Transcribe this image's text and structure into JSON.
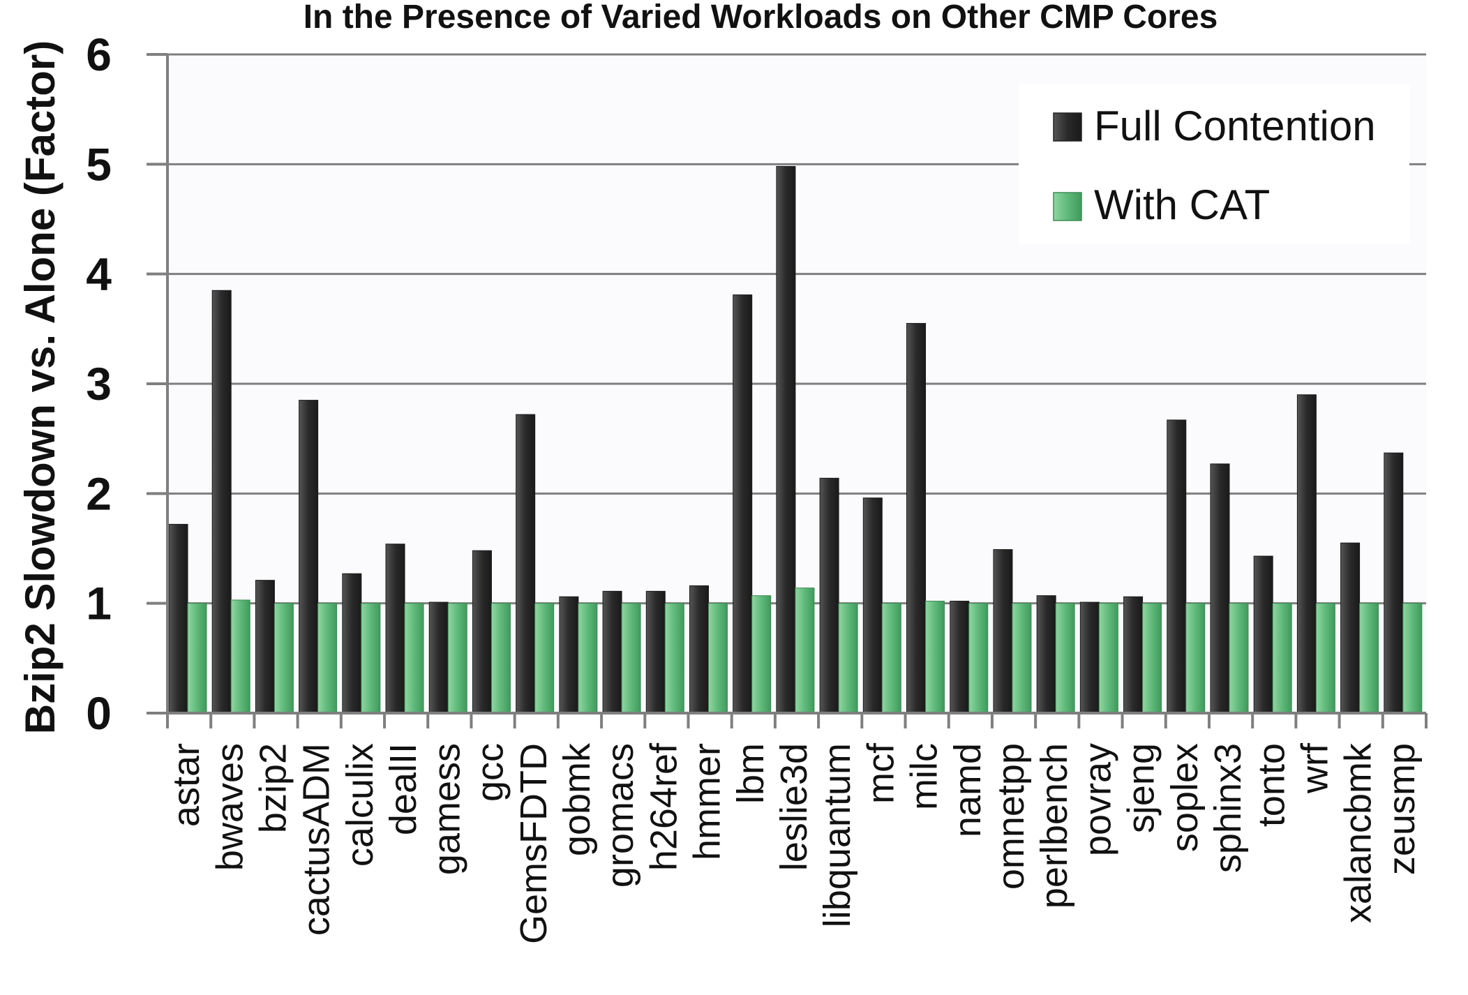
{
  "chart_data": {
    "type": "bar",
    "title": "In the Presence of Varied Workloads on Other CMP Cores",
    "ylabel": "Bzip2 Slowdown vs. Alone (Factor)",
    "xlabel": "",
    "ylim": [
      0,
      6
    ],
    "yticks": [
      "0",
      "1",
      "2",
      "3",
      "4",
      "5",
      "6"
    ],
    "grid": true,
    "legend_position": "top-right",
    "categories": [
      "astar",
      "bwaves",
      "bzip2",
      "cactusADM",
      "calculix",
      "dealII",
      "gamess",
      "gcc",
      "GemsFDTD",
      "gobmk",
      "gromacs",
      "h264ref",
      "hmmer",
      "lbm",
      "leslie3d",
      "libquantum",
      "mcf",
      "milc",
      "namd",
      "omnetpp",
      "perlbench",
      "povray",
      "sjeng",
      "soplex",
      "sphinx3",
      "tonto",
      "wrf",
      "xalancbmk",
      "zeusmp"
    ],
    "series": [
      {
        "name": "Full Contention",
        "color": "#3a3a3a",
        "values": [
          1.72,
          3.85,
          1.21,
          2.85,
          1.27,
          1.54,
          1.01,
          1.48,
          2.72,
          1.06,
          1.11,
          1.11,
          1.16,
          3.81,
          4.98,
          2.14,
          1.96,
          3.55,
          1.02,
          1.49,
          1.07,
          1.01,
          1.06,
          2.67,
          2.27,
          1.43,
          2.9,
          1.55,
          2.37
        ]
      },
      {
        "name": "With CAT",
        "color": "#5fb97a",
        "values": [
          1.0,
          1.03,
          1.0,
          1.0,
          1.0,
          1.0,
          1.0,
          1.0,
          1.0,
          1.0,
          1.0,
          1.0,
          1.0,
          1.07,
          1.14,
          1.0,
          1.0,
          1.02,
          1.0,
          1.0,
          1.0,
          1.0,
          1.0,
          1.0,
          1.0,
          1.0,
          1.0,
          1.0,
          1.0
        ]
      }
    ]
  }
}
